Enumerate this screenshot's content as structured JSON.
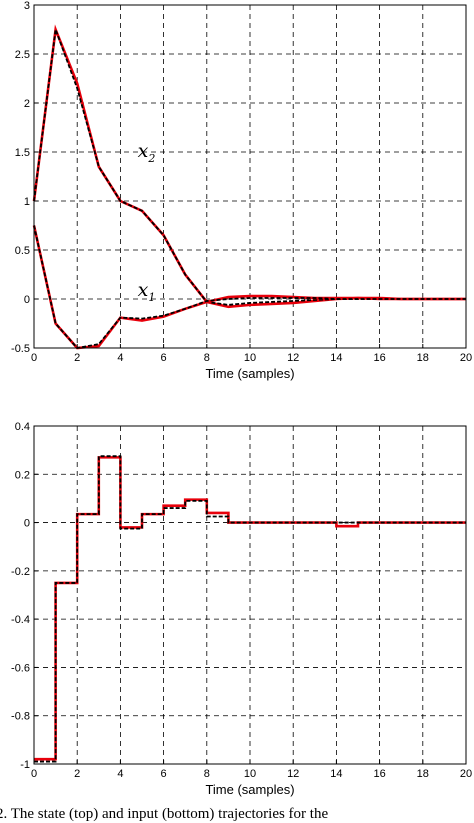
{
  "chart_data": [
    {
      "type": "line",
      "title": "",
      "xlabel": "Time (samples)",
      "ylabel": "",
      "xlim": [
        0,
        20
      ],
      "ylim": [
        -0.5,
        3
      ],
      "xticks": [
        0,
        2,
        4,
        6,
        8,
        10,
        12,
        14,
        16,
        18,
        20
      ],
      "yticks": [
        -0.5,
        0,
        0.5,
        1,
        1.5,
        2,
        2.5,
        3
      ],
      "grid": true,
      "series": [
        {
          "name": "x2",
          "label_main": "x",
          "label_sub": "2",
          "label_at": [
            4.8,
            1.45
          ],
          "x": [
            0,
            1,
            2,
            3,
            4,
            5,
            6,
            7,
            8,
            9,
            10,
            11,
            12,
            13,
            14,
            15,
            16,
            17,
            18,
            19,
            20
          ],
          "red": [
            1.0,
            2.75,
            2.2,
            1.35,
            1.0,
            0.9,
            0.65,
            0.25,
            -0.03,
            -0.08,
            -0.06,
            -0.05,
            -0.04,
            -0.02,
            0.0,
            0.01,
            0.01,
            0.0,
            0.0,
            0.0,
            0.0
          ],
          "black": [
            1.0,
            2.75,
            2.15,
            1.35,
            1.0,
            0.9,
            0.65,
            0.25,
            -0.03,
            -0.06,
            -0.04,
            -0.03,
            -0.02,
            -0.01,
            0.0,
            0.0,
            0.0,
            0.0,
            0.0,
            0.0,
            0.0
          ]
        },
        {
          "name": "x1",
          "label_main": "x",
          "label_sub": "1",
          "label_at": [
            4.8,
            0.03
          ],
          "x": [
            0,
            1,
            2,
            3,
            4,
            5,
            6,
            7,
            8,
            9,
            10,
            11,
            12,
            13,
            14,
            15,
            16,
            17,
            18,
            19,
            20
          ],
          "red": [
            0.75,
            -0.25,
            -0.5,
            -0.48,
            -0.19,
            -0.22,
            -0.18,
            -0.1,
            -0.03,
            0.02,
            0.03,
            0.03,
            0.02,
            0.01,
            0.01,
            0.01,
            0.0,
            0.0,
            0.0,
            0.0,
            0.0
          ],
          "black": [
            0.75,
            -0.25,
            -0.5,
            -0.46,
            -0.19,
            -0.2,
            -0.17,
            -0.1,
            -0.02,
            0.0,
            0.01,
            0.01,
            0.01,
            0.01,
            0.0,
            0.0,
            0.0,
            0.0,
            0.0,
            0.0,
            0.0
          ]
        }
      ]
    },
    {
      "type": "line",
      "step": true,
      "title": "",
      "xlabel": "Time (samples)",
      "ylabel": "",
      "xlim": [
        0,
        20
      ],
      "ylim": [
        -1,
        0.4
      ],
      "xticks": [
        0,
        2,
        4,
        6,
        8,
        10,
        12,
        14,
        16,
        18,
        20
      ],
      "yticks": [
        -1,
        -0.8,
        -0.6,
        -0.4,
        -0.2,
        0,
        0.2,
        0.4
      ],
      "grid": true,
      "series": [
        {
          "name": "",
          "x": [
            0,
            1,
            2,
            3,
            4,
            5,
            6,
            7,
            8,
            9,
            10,
            11,
            12,
            13,
            14,
            15,
            16,
            17,
            18,
            19,
            20
          ],
          "red": [
            -0.98,
            -0.25,
            0.035,
            0.27,
            -0.02,
            0.035,
            0.07,
            0.095,
            0.04,
            0.0,
            0.0,
            0.0,
            0.0,
            0.0,
            -0.015,
            0.0,
            0.0,
            0.0,
            0.0,
            0.0,
            0.0
          ],
          "black": [
            -0.99,
            -0.25,
            0.035,
            0.275,
            -0.025,
            0.035,
            0.06,
            0.09,
            0.025,
            0.0,
            0.0,
            0.0,
            0.0,
            0.0,
            0.0,
            0.0,
            0.0,
            0.0,
            0.0,
            0.0,
            0.0
          ]
        }
      ]
    }
  ],
  "caption": "2.   The state (top) and input (bottom) trajectories for the",
  "colors": {
    "red": "#e8000b",
    "black": "#000000",
    "grid": "#000000",
    "frame": "#000000"
  }
}
